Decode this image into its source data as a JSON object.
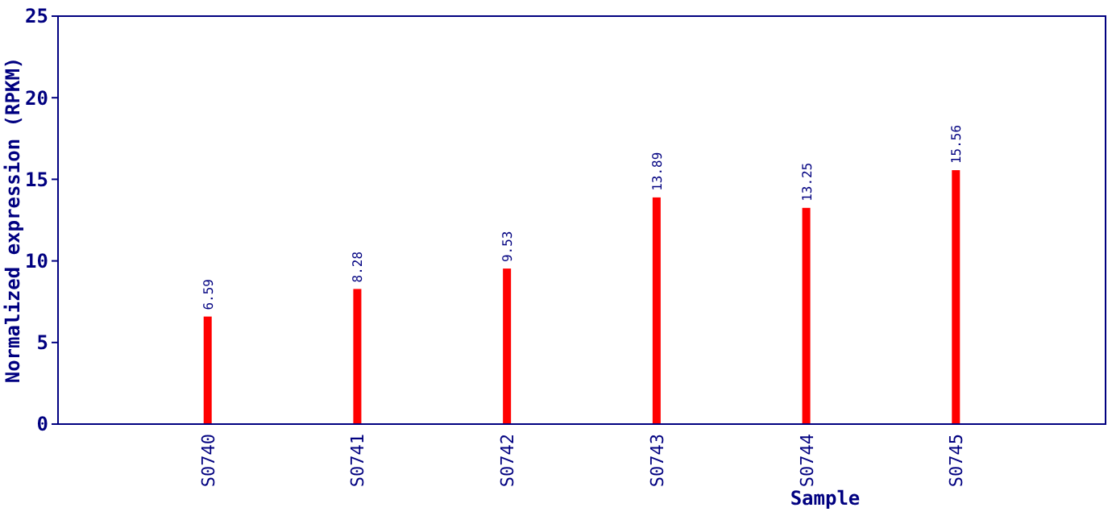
{
  "chart_data": {
    "type": "bar",
    "xlabel": "Sample",
    "ylabel": "Normalized expression (RPKM)",
    "categories": [
      "S0740",
      "S0741",
      "S0742",
      "S0743",
      "S0744",
      "S0745"
    ],
    "values": [
      6.59,
      8.28,
      9.53,
      13.89,
      13.25,
      15.56
    ],
    "color": "#ff0000",
    "ylim": [
      0,
      25
    ],
    "yticks": [
      0,
      5,
      10,
      15,
      20,
      25
    ],
    "data_labels": true
  }
}
